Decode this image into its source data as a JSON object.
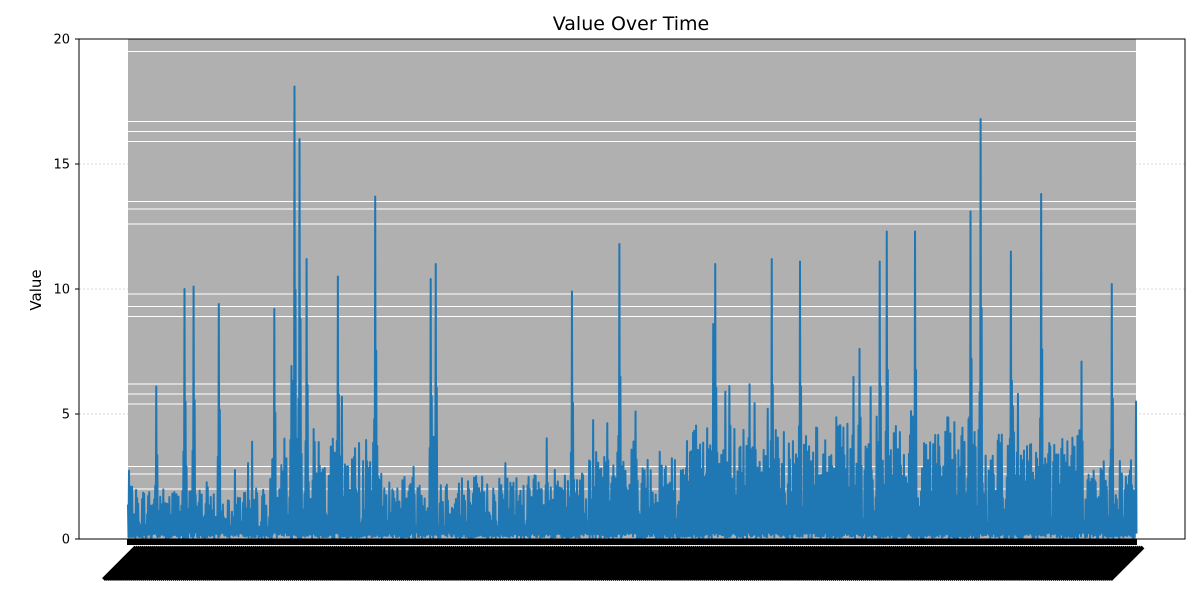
{
  "chart_data": {
    "type": "line",
    "title": "Value Over Time",
    "xlabel": "",
    "ylabel": "Value",
    "ylim": [
      0,
      20
    ],
    "yticks": [
      0,
      5,
      10,
      15,
      20
    ],
    "grid": "y-dashed",
    "colors": {
      "line": "#1f77b4",
      "band_fill": "#b0b0b0",
      "axes": "#000000",
      "grid": "#b0b0b0"
    },
    "n_points": 1000,
    "peaks": [
      {
        "x": 2,
        "y": 2.1
      },
      {
        "x": 28,
        "y": 6.1
      },
      {
        "x": 56,
        "y": 10.0
      },
      {
        "x": 65,
        "y": 10.1
      },
      {
        "x": 90,
        "y": 9.4
      },
      {
        "x": 145,
        "y": 9.2
      },
      {
        "x": 165,
        "y": 18.1
      },
      {
        "x": 170,
        "y": 16.0
      },
      {
        "x": 177,
        "y": 11.2
      },
      {
        "x": 208,
        "y": 10.5
      },
      {
        "x": 245,
        "y": 13.7
      },
      {
        "x": 300,
        "y": 10.4
      },
      {
        "x": 305,
        "y": 11.0
      },
      {
        "x": 440,
        "y": 9.9
      },
      {
        "x": 487,
        "y": 11.8
      },
      {
        "x": 580,
        "y": 8.6
      },
      {
        "x": 582,
        "y": 11.0
      },
      {
        "x": 638,
        "y": 11.2
      },
      {
        "x": 666,
        "y": 11.1
      },
      {
        "x": 745,
        "y": 11.1
      },
      {
        "x": 752,
        "y": 12.3
      },
      {
        "x": 780,
        "y": 12.3
      },
      {
        "x": 835,
        "y": 13.1
      },
      {
        "x": 845,
        "y": 16.8
      },
      {
        "x": 875,
        "y": 11.5
      },
      {
        "x": 905,
        "y": 13.8
      },
      {
        "x": 945,
        "y": 7.1
      },
      {
        "x": 975,
        "y": 10.2
      },
      {
        "x": 999,
        "y": 5.5
      }
    ],
    "level_segments": [
      {
        "from": 0,
        "to": 150,
        "level": 1.2
      },
      {
        "from": 150,
        "to": 250,
        "level": 2.3
      },
      {
        "from": 250,
        "to": 450,
        "level": 1.5
      },
      {
        "from": 450,
        "to": 550,
        "level": 2.0
      },
      {
        "from": 550,
        "to": 700,
        "level": 2.6
      },
      {
        "from": 700,
        "to": 850,
        "level": 2.8
      },
      {
        "from": 850,
        "to": 950,
        "level": 2.5
      },
      {
        "from": 950,
        "to": 1000,
        "level": 1.8
      }
    ]
  }
}
